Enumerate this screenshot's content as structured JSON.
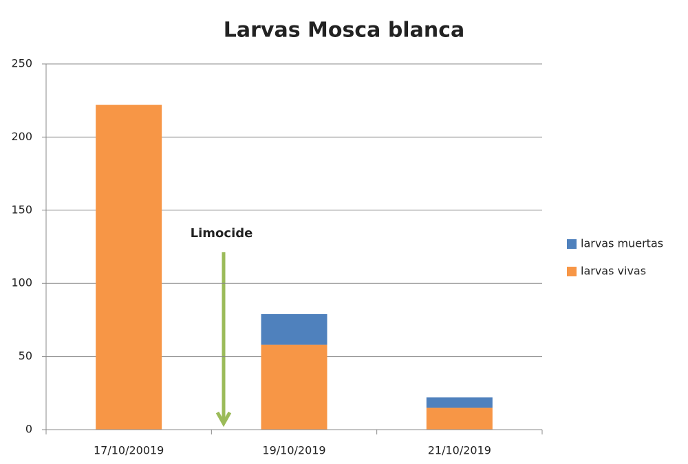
{
  "chart_data": {
    "type": "stacked_bar",
    "title": "Larvas Mosca blanca",
    "categories": [
      "17/10/20019",
      "19/10/2019",
      "21/10/2019"
    ],
    "series": [
      {
        "name": "larvas vivas",
        "color": "#f79646",
        "values": [
          222,
          58,
          15
        ]
      },
      {
        "name": "larvas muertas",
        "color": "#4f81bd",
        "values": [
          0,
          21,
          7
        ]
      }
    ],
    "ylim": [
      0,
      250
    ],
    "yticks": [
      0,
      50,
      100,
      150,
      200,
      250
    ],
    "grid": true,
    "legend": "right",
    "annotation": "Limocide"
  }
}
